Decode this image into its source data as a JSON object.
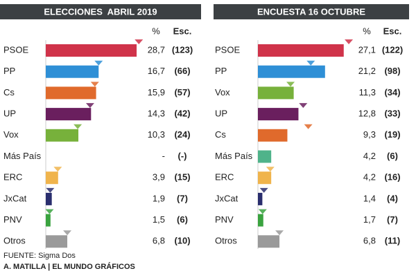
{
  "chart_data": [
    {
      "type": "bar",
      "title": "ELECCIONES  ABRIL 2019",
      "pct_header": "%",
      "seat_header": "Esc.",
      "categories": [
        "PSOE",
        "PP",
        "Cs",
        "UP",
        "Vox",
        "Más País",
        "ERC",
        "JxCat",
        "PNV",
        "Otros"
      ],
      "colors": [
        "#d0334a",
        "#2e8fd6",
        "#e06a2c",
        "#6a1f5e",
        "#77b13b",
        "#4fb38a",
        "#f0b44c",
        "#2a2e6e",
        "#3aa33f",
        "#9a9a9a"
      ],
      "values": [
        28.7,
        16.7,
        15.9,
        14.3,
        10.3,
        null,
        3.9,
        1.9,
        1.5,
        6.8
      ],
      "value_labels": [
        "28,7",
        "16,7",
        "15,9",
        "14,3",
        "10,3",
        "-",
        "3,9",
        "1,9",
        "1,5",
        "6,8"
      ],
      "seats": [
        123,
        66,
        57,
        42,
        24,
        null,
        15,
        7,
        6,
        10
      ],
      "seat_labels": [
        "(123)",
        "(66)",
        "(57)",
        "(42)",
        "(24)",
        "(-)",
        "(15)",
        "(7)",
        "(6)",
        "(10)"
      ],
      "markers": [
        29.4,
        16.7,
        15.5,
        14.0,
        10.1,
        null,
        3.8,
        1.4,
        1.2,
        6.8
      ],
      "xlim": [
        0,
        30
      ]
    },
    {
      "type": "bar",
      "title": "ENCUESTA 16 OCTUBRE",
      "pct_header": "%",
      "seat_header": "Esc.",
      "categories": [
        "PSOE",
        "PP",
        "Vox",
        "UP",
        "Cs",
        "Más País",
        "ERC",
        "JxCat",
        "PNV",
        "Otros"
      ],
      "colors": [
        "#d0334a",
        "#2e8fd6",
        "#77b13b",
        "#6a1f5e",
        "#e06a2c",
        "#4fb38a",
        "#f0b44c",
        "#2a2e6e",
        "#3aa33f",
        "#9a9a9a"
      ],
      "values": [
        27.1,
        21.2,
        11.3,
        12.8,
        9.3,
        4.2,
        4.2,
        1.4,
        1.7,
        6.8
      ],
      "value_labels": [
        "27,1",
        "21,2",
        "11,3",
        "12,8",
        "9,3",
        "4,2",
        "4,2",
        "1,4",
        "1,7",
        "6,8"
      ],
      "seats": [
        122,
        98,
        34,
        33,
        19,
        6,
        16,
        4,
        7,
        11
      ],
      "seat_labels": [
        "(122)",
        "(98)",
        "(34)",
        "(33)",
        "(19)",
        "(6)",
        "(16)",
        "(4)",
        "(7)",
        "(11)"
      ],
      "markers": [
        28.7,
        16.7,
        10.3,
        14.3,
        15.9,
        null,
        3.9,
        1.9,
        1.5,
        6.8
      ],
      "xlim": [
        0,
        30
      ]
    }
  ],
  "source": "FUENTE: Sigma Dos",
  "credit": "A. MATILLA | EL MUNDO GRÁFICOS"
}
